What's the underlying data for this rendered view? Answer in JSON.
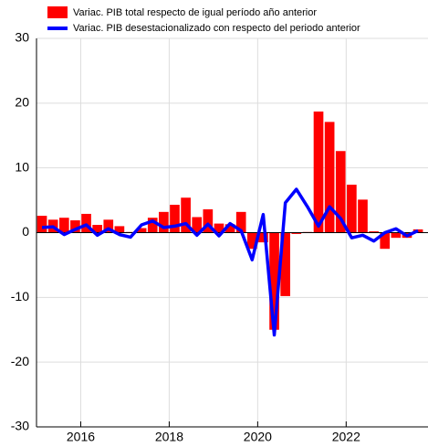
{
  "chart_data": {
    "type": "bar_line",
    "series": [
      {
        "name": "Variac. PIB total respecto de igual período año anterior",
        "type": "bar",
        "color": "#ff0000",
        "values": [
          2.6,
          2.0,
          2.3,
          1.9,
          2.9,
          1.2,
          2.0,
          1.0,
          0.1,
          0.7,
          2.3,
          3.2,
          4.3,
          5.4,
          2.4,
          3.6,
          1.4,
          1.3,
          3.2,
          -2.5,
          -1.5,
          -15.0,
          -9.8,
          -0.2,
          0.1,
          18.7,
          17.1,
          12.6,
          7.4,
          5.1,
          0.2,
          -2.5,
          -0.8,
          -0.8,
          0.5
        ]
      },
      {
        "name": "Variac. PIB desestacionalizado con respecto del periodo anterior",
        "type": "line",
        "color": "#0000ff",
        "values": [
          0.8,
          0.9,
          -0.3,
          0.5,
          1.2,
          -0.4,
          0.6,
          -0.3,
          -0.7,
          1.2,
          1.8,
          0.8,
          1.0,
          1.4,
          -0.4,
          1.3,
          -0.5,
          1.4,
          0.3,
          -4.2,
          2.8,
          -15.8,
          4.6,
          6.7,
          4.0,
          1.0,
          4.0,
          2.2,
          -0.8,
          -0.4,
          -1.3,
          0.0,
          0.6,
          -0.5,
          0.3
        ]
      }
    ],
    "x": [
      2015.125,
      2015.375,
      2015.625,
      2015.875,
      2016.125,
      2016.375,
      2016.625,
      2016.875,
      2017.125,
      2017.375,
      2017.625,
      2017.875,
      2018.125,
      2018.375,
      2018.625,
      2018.875,
      2019.125,
      2019.375,
      2019.625,
      2019.875,
      2020.125,
      2020.375,
      2020.625,
      2020.875,
      2021.125,
      2021.375,
      2021.625,
      2021.875,
      2022.125,
      2022.375,
      2022.625,
      2022.875,
      2023.125,
      2023.375,
      2023.625
    ],
    "xlim": [
      2015,
      2023.85
    ],
    "xticks": [
      2016,
      2018,
      2020,
      2022
    ],
    "ylim": [
      -30,
      30
    ],
    "yticks": [
      -30,
      -20,
      -10,
      0,
      10,
      20,
      30
    ],
    "grid": true
  }
}
